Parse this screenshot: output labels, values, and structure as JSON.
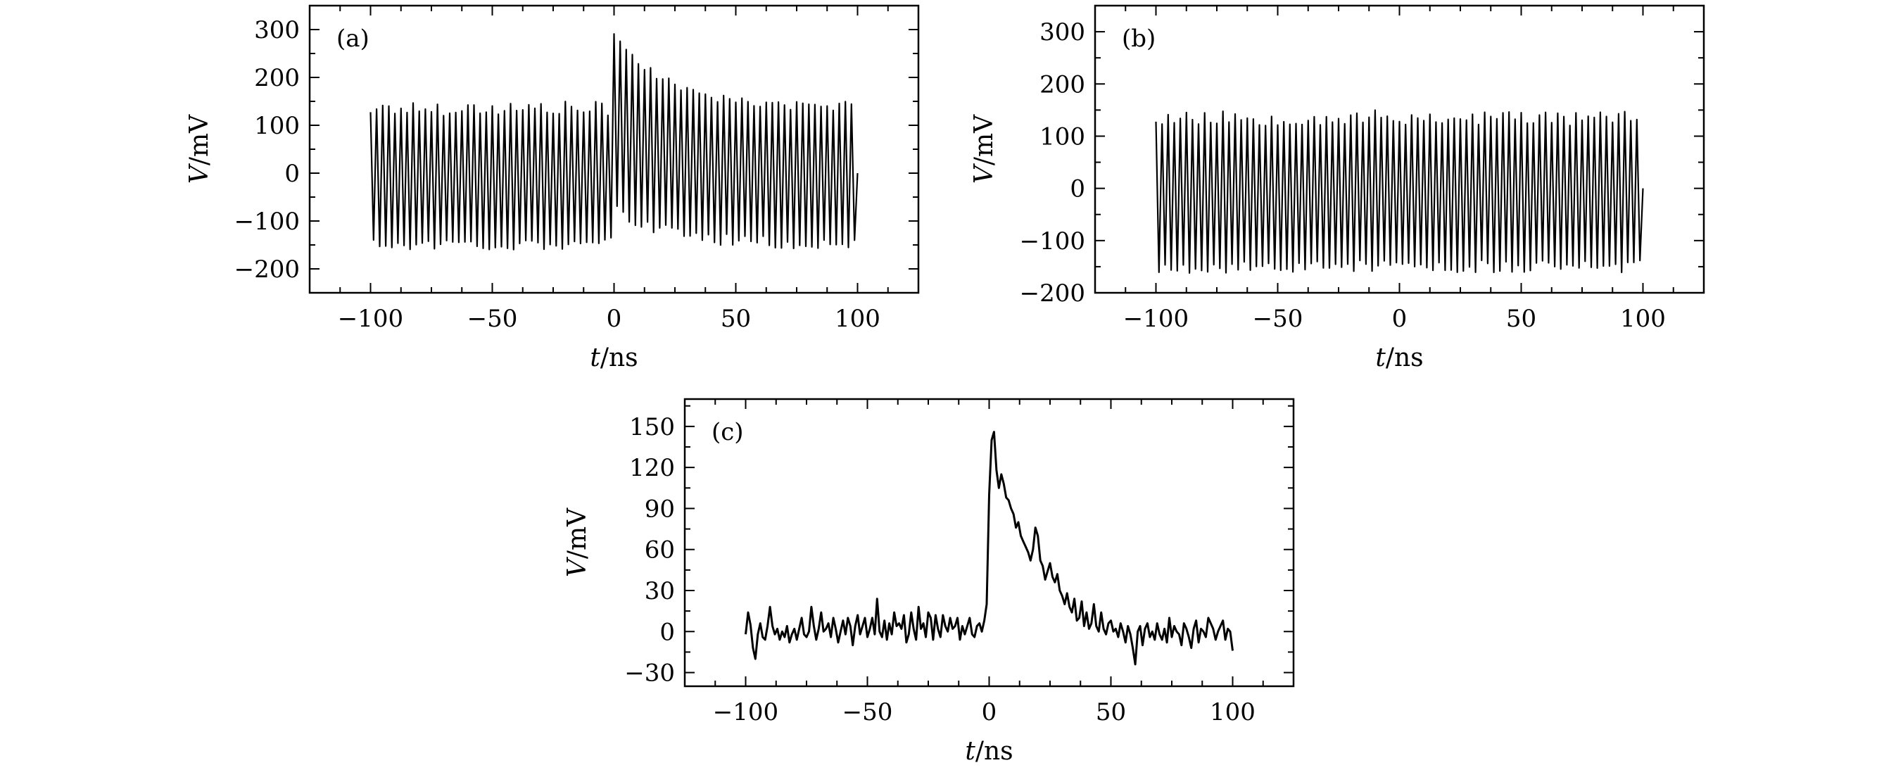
{
  "chart_data": [
    {
      "id": "a",
      "type": "line",
      "panel_label": "(a)",
      "xlabel_var": "t",
      "xlabel_unit": "/ns",
      "ylabel_var": "V",
      "ylabel_unit": "/mV",
      "xlim": [
        -125,
        125
      ],
      "ylim": [
        -250,
        350
      ],
      "xticks": [
        -100,
        -50,
        0,
        50,
        100
      ],
      "xtick_labels": [
        "−100",
        "−50",
        "0",
        "50",
        "100"
      ],
      "yticks": [
        -200,
        -100,
        0,
        100,
        200,
        300
      ],
      "ytick_labels": [
        "−200",
        "−100",
        "0",
        "100",
        "200",
        "300"
      ],
      "grid": false,
      "signal": {
        "description_kind": "oscillating trace with pulse after t=0",
        "x_range": [
          -100,
          100
        ],
        "carrier_period_ns": 2.5,
        "baseline_pos_amplitude": 135,
        "baseline_neg_amplitude": -148,
        "pulse_onset_ns": 0,
        "pulse_peak_value": 290,
        "pulse_decay_ns": 22
      }
    },
    {
      "id": "b",
      "type": "line",
      "panel_label": "(b)",
      "xlabel_var": "t",
      "xlabel_unit": "/ns",
      "ylabel_var": "V",
      "ylabel_unit": "/mV",
      "xlim": [
        -125,
        125
      ],
      "ylim": [
        -200,
        350
      ],
      "xticks": [
        -100,
        -50,
        0,
        50,
        100
      ],
      "xtick_labels": [
        "−100",
        "−50",
        "0",
        "50",
        "100"
      ],
      "yticks": [
        -200,
        -100,
        0,
        100,
        200,
        300
      ],
      "ytick_labels": [
        "−200",
        "−100",
        "0",
        "100",
        "200",
        "300"
      ],
      "grid": false,
      "signal": {
        "description_kind": "oscillating trace",
        "x_range": [
          -100,
          100
        ],
        "carrier_period_ns": 2.5,
        "baseline_pos_amplitude": 135,
        "baseline_neg_amplitude": -150
      }
    },
    {
      "id": "c",
      "type": "line",
      "panel_label": "(c)",
      "xlabel_var": "t",
      "xlabel_unit": "/ns",
      "ylabel_var": "V",
      "ylabel_unit": "/mV",
      "xlim": [
        -125,
        125
      ],
      "ylim": [
        -40,
        170
      ],
      "xticks": [
        -100,
        -50,
        0,
        50,
        100
      ],
      "xtick_labels": [
        "−100",
        "−50",
        "0",
        "50",
        "100"
      ],
      "yticks": [
        -30,
        0,
        30,
        60,
        90,
        120,
        150
      ],
      "ytick_labels": [
        "−30",
        "0",
        "30",
        "60",
        "90",
        "120",
        "150"
      ],
      "grid": false,
      "series": [
        {
          "x": [
            -100,
            -99,
            -98,
            -97,
            -96,
            -95,
            -94,
            -93,
            -92,
            -91,
            -90,
            -89,
            -88,
            -87,
            -86,
            -85,
            -84,
            -83,
            -82,
            -81,
            -80,
            -79,
            -78,
            -77,
            -76,
            -75,
            -74,
            -73,
            -72,
            -71,
            -70,
            -69,
            -68,
            -67,
            -66,
            -65,
            -64,
            -63,
            -62,
            -61,
            -60,
            -59,
            -58,
            -57,
            -56,
            -55,
            -54,
            -53,
            -52,
            -51,
            -50,
            -49,
            -48,
            -47,
            -46,
            -45,
            -44,
            -43,
            -42,
            -41,
            -40,
            -39,
            -38,
            -37,
            -36,
            -35,
            -34,
            -33,
            -32,
            -31,
            -30,
            -29,
            -28,
            -27,
            -26,
            -25,
            -24,
            -23,
            -22,
            -21,
            -20,
            -19,
            -18,
            -17,
            -16,
            -15,
            -14,
            -13,
            -12,
            -11,
            -10,
            -9,
            -8,
            -7,
            -6,
            -5,
            -4,
            -3,
            -2,
            -1,
            0,
            1,
            2,
            3,
            4,
            5,
            6,
            7,
            8,
            9,
            10,
            11,
            12,
            13,
            14,
            15,
            16,
            17,
            18,
            19,
            20,
            21,
            22,
            23,
            24,
            25,
            26,
            27,
            28,
            29,
            30,
            31,
            32,
            33,
            34,
            35,
            36,
            37,
            38,
            39,
            40,
            41,
            42,
            43,
            44,
            45,
            46,
            47,
            48,
            49,
            50,
            51,
            52,
            53,
            54,
            55,
            56,
            57,
            58,
            59,
            60,
            61,
            62,
            63,
            64,
            65,
            66,
            67,
            68,
            69,
            70,
            71,
            72,
            73,
            74,
            75,
            76,
            77,
            78,
            79,
            80,
            81,
            82,
            83,
            84,
            85,
            86,
            87,
            88,
            89,
            90,
            91,
            92,
            93,
            94,
            95,
            96,
            97,
            98,
            99,
            100
          ],
          "y": [
            -2,
            14,
            5,
            -12,
            -20,
            -2,
            6,
            -4,
            -6,
            4,
            18,
            4,
            -2,
            2,
            -6,
            0,
            -4,
            4,
            -8,
            -2,
            2,
            -6,
            2,
            10,
            -2,
            -4,
            0,
            18,
            4,
            -6,
            2,
            14,
            0,
            2,
            6,
            -4,
            10,
            2,
            -8,
            0,
            8,
            -2,
            10,
            4,
            -10,
            4,
            12,
            -2,
            4,
            10,
            -4,
            2,
            10,
            -2,
            24,
            0,
            -4,
            8,
            -6,
            6,
            -2,
            14,
            4,
            6,
            2,
            12,
            -8,
            -2,
            14,
            2,
            -6,
            18,
            2,
            6,
            -4,
            14,
            10,
            -6,
            12,
            2,
            -4,
            12,
            4,
            0,
            10,
            2,
            4,
            10,
            -6,
            4,
            -2,
            4,
            10,
            -2,
            -4,
            4,
            6,
            0,
            8,
            20,
            100,
            140,
            146,
            118,
            105,
            115,
            108,
            98,
            96,
            90,
            86,
            76,
            80,
            70,
            66,
            62,
            58,
            52,
            60,
            76,
            70,
            52,
            48,
            38,
            44,
            50,
            40,
            36,
            42,
            30,
            26,
            20,
            28,
            18,
            14,
            24,
            8,
            10,
            22,
            4,
            14,
            2,
            6,
            20,
            4,
            0,
            14,
            2,
            -2,
            6,
            8,
            0,
            2,
            -4,
            6,
            0,
            -8,
            4,
            -2,
            -12,
            -24,
            0,
            4,
            -10,
            2,
            6,
            -4,
            0,
            -6,
            6,
            -2,
            -6,
            2,
            -8,
            10,
            -4,
            4,
            0,
            -2,
            -10,
            6,
            2,
            -4,
            -12,
            2,
            8,
            -8,
            2,
            0,
            -4,
            10,
            6,
            2,
            -6,
            0,
            4,
            8,
            -6,
            2,
            0,
            -14
          ]
        }
      ]
    }
  ]
}
